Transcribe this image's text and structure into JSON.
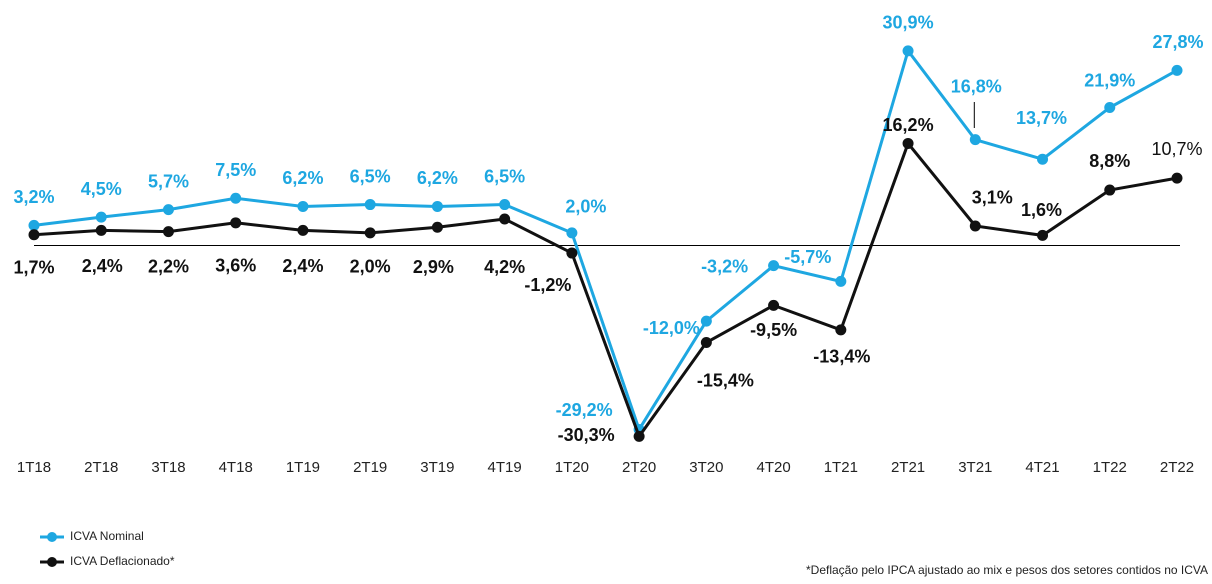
{
  "chart_data": {
    "type": "line",
    "categories": [
      "1T18",
      "2T18",
      "3T18",
      "4T18",
      "1T19",
      "2T19",
      "3T19",
      "4T19",
      "1T20",
      "2T20",
      "3T20",
      "4T20",
      "1T21",
      "2T21",
      "3T21",
      "4T21",
      "1T22",
      "2T22"
    ],
    "ylim": [
      -35,
      35
    ],
    "series": [
      {
        "name": "ICVA Nominal",
        "color": "#1ea7e1",
        "values": [
          3.2,
          4.5,
          5.7,
          7.5,
          6.2,
          6.5,
          6.2,
          6.5,
          2.0,
          -29.2,
          -12.0,
          -3.2,
          -5.7,
          30.9,
          16.8,
          13.7,
          21.9,
          27.8
        ],
        "value_labels": [
          "3,2%",
          "4,5%",
          "5,7%",
          "7,5%",
          "6,2%",
          "6,5%",
          "6,2%",
          "6,5%",
          "2,0%",
          "-29,2%",
          "-12,0%",
          "-3,2%",
          "-5,7%",
          "30,9%",
          "16,8%",
          "13,7%",
          "21,9%",
          "27,8%"
        ]
      },
      {
        "name": "ICVA Deflacionado*",
        "color": "#111111",
        "values": [
          1.7,
          2.4,
          2.2,
          3.6,
          2.4,
          2.0,
          2.9,
          4.2,
          -1.2,
          -30.3,
          -15.4,
          -9.5,
          -13.4,
          16.2,
          3.1,
          1.6,
          8.8,
          10.7
        ],
        "value_labels": [
          "1,7%",
          "2,4%",
          "2,2%",
          "3,6%",
          "2,4%",
          "2,0%",
          "2,9%",
          "4,2%",
          "-1,2%",
          "-30,3%",
          "-15,4%",
          "-9,5%",
          "-13,4%",
          "16,2%",
          "3,1%",
          "1,6%",
          "8,8%",
          "10,7%"
        ]
      }
    ],
    "footnote": "*Deflação pelo IPCA ajustado ao mix e pesos dos setores contidos no ICVA"
  }
}
